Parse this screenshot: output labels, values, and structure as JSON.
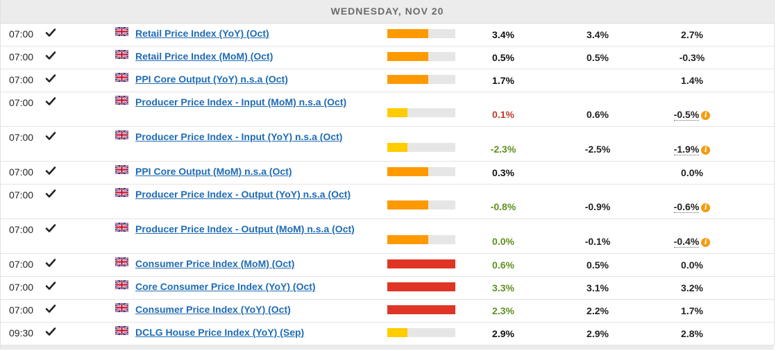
{
  "header": {
    "day": "WEDNESDAY, NOV 20"
  },
  "colors": {
    "impact_medium": "#ff9900",
    "impact_low": "#ffcc00",
    "impact_high": "#e03524",
    "link": "#1f6bb5",
    "better": "#5f8f1f",
    "worse": "#c0392b"
  },
  "events": [
    {
      "time": "07:00",
      "status": "check-icon",
      "flag": "uk-flag-icon",
      "name": "Retail Price Index (YoY) (Oct)",
      "impact": "medium",
      "impact_level": 0.6,
      "actual": "3.4%",
      "actual_tone": "dark",
      "forecast": "3.4%",
      "previous": "2.7%",
      "revised": false,
      "tall": false
    },
    {
      "time": "07:00",
      "status": "check-icon",
      "flag": "uk-flag-icon",
      "name": "Retail Price Index (MoM) (Oct)",
      "impact": "medium",
      "impact_level": 0.6,
      "actual": "0.5%",
      "actual_tone": "dark",
      "forecast": "0.5%",
      "previous": "-0.3%",
      "revised": false,
      "tall": false
    },
    {
      "time": "07:00",
      "status": "check-icon",
      "flag": "uk-flag-icon",
      "name": "PPI Core Output (YoY) n.s.a (Oct)",
      "impact": "medium",
      "impact_level": 0.6,
      "actual": "1.7%",
      "actual_tone": "dark",
      "forecast": "",
      "previous": "1.4%",
      "revised": false,
      "tall": false
    },
    {
      "time": "07:00",
      "status": "check-icon",
      "flag": "uk-flag-icon",
      "name": "Producer Price Index - Input (MoM) n.s.a (Oct)",
      "impact": "low",
      "impact_level": 0.3,
      "actual": "0.1%",
      "actual_tone": "red",
      "forecast": "0.6%",
      "previous": "-0.5%",
      "revised": true,
      "tall": true
    },
    {
      "time": "07:00",
      "status": "check-icon",
      "flag": "uk-flag-icon",
      "name": "Producer Price Index - Input (YoY) n.s.a (Oct)",
      "impact": "low",
      "impact_level": 0.3,
      "actual": "-2.3%",
      "actual_tone": "green",
      "forecast": "-2.5%",
      "previous": "-1.9%",
      "revised": true,
      "tall": true
    },
    {
      "time": "07:00",
      "status": "check-icon",
      "flag": "uk-flag-icon",
      "name": "PPI Core Output (MoM) n.s.a (Oct)",
      "impact": "medium",
      "impact_level": 0.6,
      "actual": "0.3%",
      "actual_tone": "dark",
      "forecast": "",
      "previous": "0.0%",
      "revised": false,
      "tall": false
    },
    {
      "time": "07:00",
      "status": "check-icon",
      "flag": "uk-flag-icon",
      "name": "Producer Price Index - Output (YoY) n.s.a (Oct)",
      "impact": "medium",
      "impact_level": 0.6,
      "actual": "-0.8%",
      "actual_tone": "green",
      "forecast": "-0.9%",
      "previous": "-0.6%",
      "revised": true,
      "tall": true
    },
    {
      "time": "07:00",
      "status": "check-icon",
      "flag": "uk-flag-icon",
      "name": "Producer Price Index - Output (MoM) n.s.a (Oct)",
      "impact": "medium",
      "impact_level": 0.6,
      "actual": "0.0%",
      "actual_tone": "green",
      "forecast": "-0.1%",
      "previous": "-0.4%",
      "revised": true,
      "tall": true
    },
    {
      "time": "07:00",
      "status": "check-icon",
      "flag": "uk-flag-icon",
      "name": "Consumer Price Index (MoM) (Oct)",
      "impact": "high",
      "impact_level": 1.0,
      "actual": "0.6%",
      "actual_tone": "green",
      "forecast": "0.5%",
      "previous": "0.0%",
      "revised": false,
      "tall": false
    },
    {
      "time": "07:00",
      "status": "check-icon",
      "flag": "uk-flag-icon",
      "name": "Core Consumer Price Index (YoY) (Oct)",
      "impact": "high",
      "impact_level": 1.0,
      "actual": "3.3%",
      "actual_tone": "green",
      "forecast": "3.1%",
      "previous": "3.2%",
      "revised": false,
      "tall": false
    },
    {
      "time": "07:00",
      "status": "check-icon",
      "flag": "uk-flag-icon",
      "name": "Consumer Price Index (YoY) (Oct)",
      "impact": "high",
      "impact_level": 1.0,
      "actual": "2.3%",
      "actual_tone": "green",
      "forecast": "2.2%",
      "previous": "1.7%",
      "revised": false,
      "tall": false
    },
    {
      "time": "09:30",
      "status": "check-icon",
      "flag": "uk-flag-icon",
      "name": "DCLG House Price Index (YoY) (Sep)",
      "impact": "low",
      "impact_level": 0.3,
      "actual": "2.9%",
      "actual_tone": "dark",
      "forecast": "2.9%",
      "previous": "2.8%",
      "revised": false,
      "tall": false
    }
  ]
}
